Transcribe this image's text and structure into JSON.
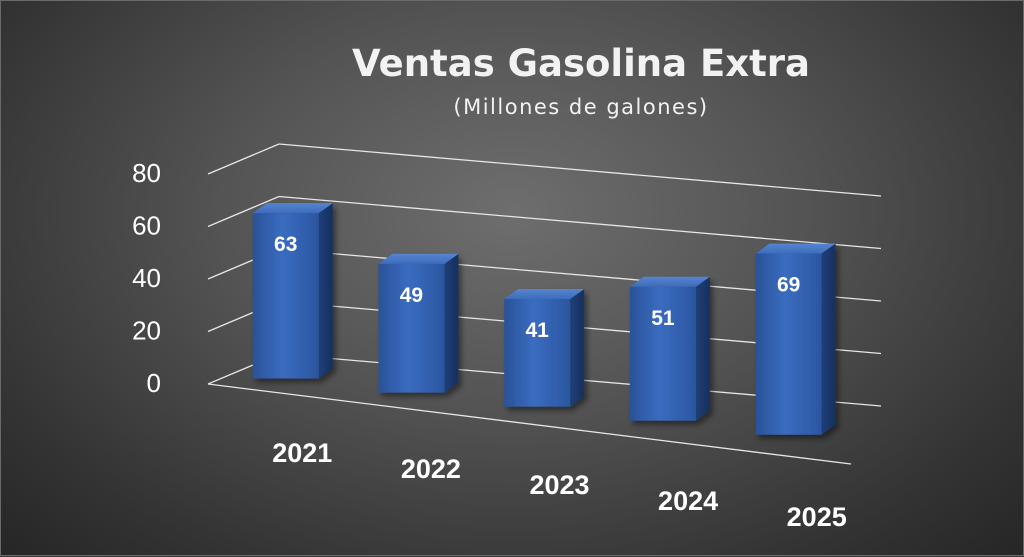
{
  "chart_data": {
    "type": "bar",
    "title": "Ventas Gasolina Extra",
    "subtitle": "(Millones de galones)",
    "categories": [
      "2021",
      "2022",
      "2023",
      "2024",
      "2025"
    ],
    "values": [
      63,
      49,
      41,
      51,
      69
    ],
    "yticks": [
      "0",
      "20",
      "40",
      "60",
      "80"
    ],
    "ylim": [
      0,
      80
    ],
    "grid": true,
    "legend": "none",
    "bar_color": "#2f5fa7",
    "data_labels": true,
    "style": "3d-perspective"
  }
}
